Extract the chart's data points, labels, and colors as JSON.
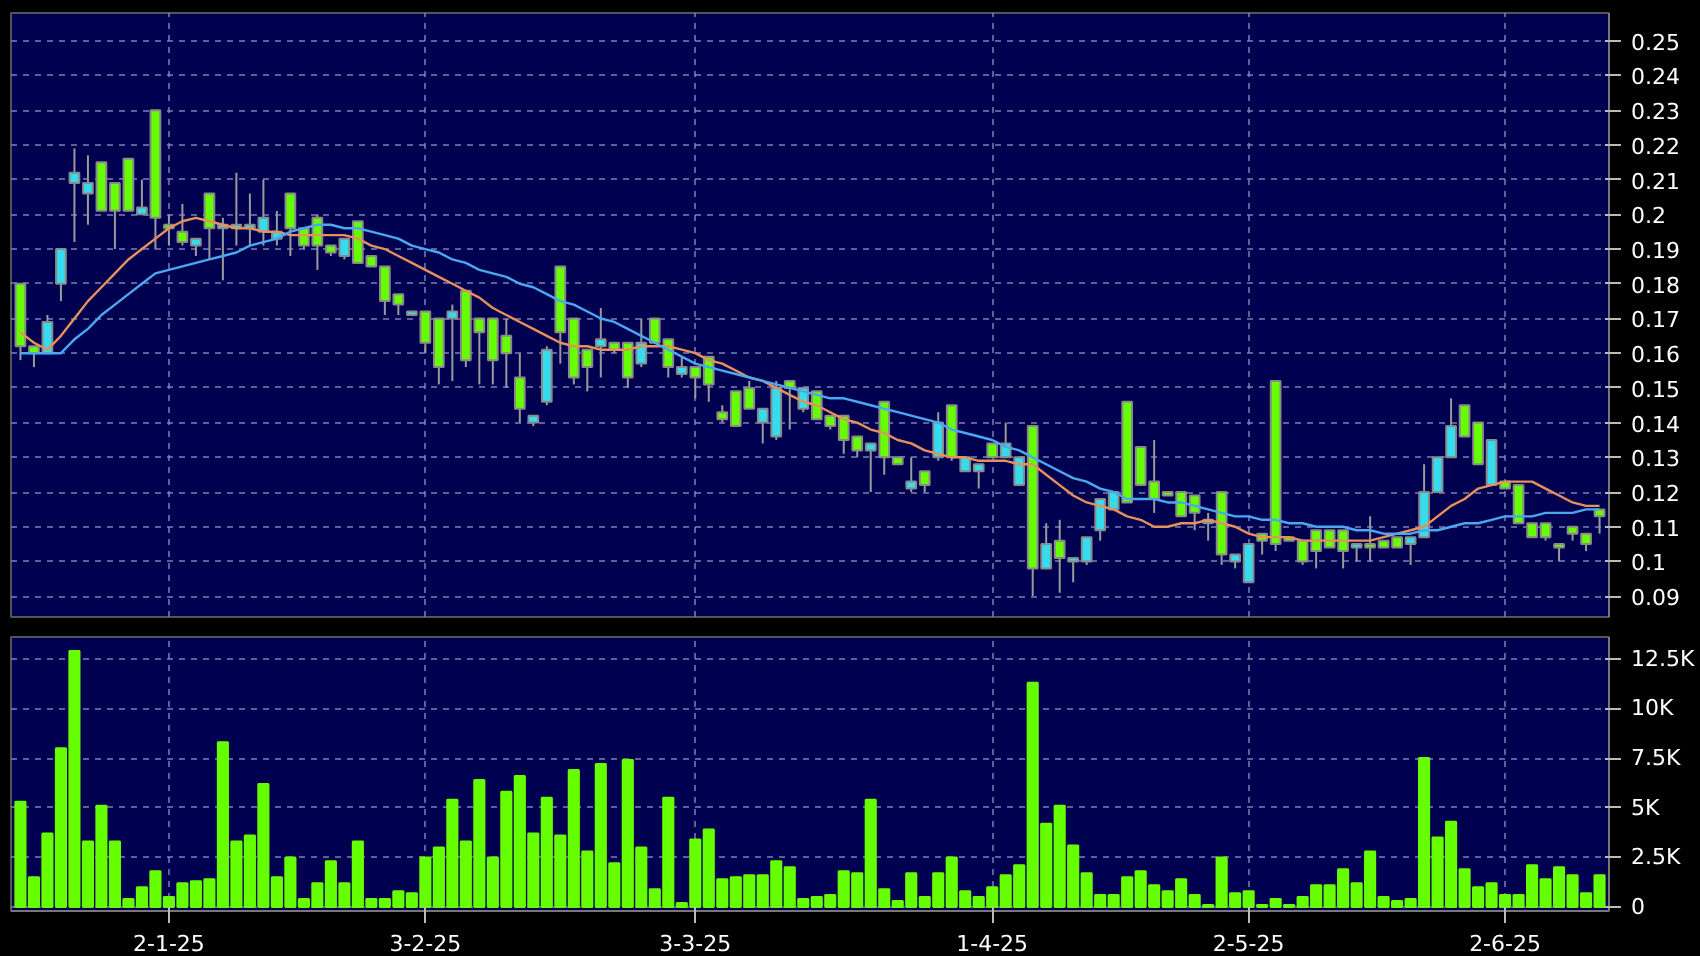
{
  "chart_data": [
    {
      "type": "candlestick",
      "categories": [
        null,
        null,
        null,
        null,
        null,
        null,
        null,
        null,
        null,
        null,
        null,
        null,
        null,
        null,
        null,
        null,
        null,
        null,
        null,
        null,
        null,
        null,
        null,
        null,
        null,
        null,
        null,
        null,
        null,
        null,
        null,
        null,
        null,
        null,
        null,
        null,
        null,
        null,
        null,
        null,
        null,
        null,
        null,
        null,
        null,
        null,
        null,
        null,
        null,
        null,
        null,
        null,
        null,
        null,
        null,
        null,
        null,
        null,
        null,
        null,
        null,
        null,
        null,
        null,
        null,
        null,
        null,
        null,
        null,
        null,
        null,
        null,
        null,
        null,
        null,
        null,
        null,
        null,
        null,
        null,
        null,
        null,
        null,
        null,
        null,
        null,
        null,
        null,
        null,
        null,
        null,
        null,
        null,
        null,
        null,
        null,
        null,
        null,
        null,
        null,
        null,
        null,
        null,
        null,
        null,
        null,
        null,
        null,
        null,
        null,
        null,
        null,
        null,
        null,
        null,
        null,
        null,
        null
      ],
      "ohlc": [
        [
          0.18,
          0.18,
          0.158,
          0.162
        ],
        [
          0.162,
          0.162,
          0.156,
          0.16
        ],
        [
          0.16,
          0.171,
          0.16,
          0.169
        ],
        [
          0.18,
          0.19,
          0.175,
          0.19
        ],
        [
          0.209,
          0.219,
          0.192,
          0.212
        ],
        [
          0.206,
          0.217,
          0.197,
          0.209
        ],
        [
          0.215,
          0.215,
          0.201,
          0.201
        ],
        [
          0.209,
          0.209,
          0.19,
          0.201
        ],
        [
          0.216,
          0.216,
          0.201,
          0.201
        ],
        [
          0.2,
          0.21,
          0.2,
          0.202
        ],
        [
          0.23,
          0.23,
          0.19,
          0.199
        ],
        [
          0.197,
          0.2,
          0.191,
          0.196
        ],
        [
          0.195,
          0.203,
          0.191,
          0.192
        ],
        [
          0.191,
          0.193,
          0.188,
          0.193
        ],
        [
          0.206,
          0.206,
          0.187,
          0.196
        ],
        [
          0.196,
          0.199,
          0.181,
          0.197
        ],
        [
          0.196,
          0.212,
          0.191,
          0.197
        ],
        [
          0.196,
          0.206,
          0.191,
          0.197
        ],
        [
          0.195,
          0.21,
          0.191,
          0.199
        ],
        [
          0.193,
          0.201,
          0.191,
          0.195
        ],
        [
          0.206,
          0.206,
          0.188,
          0.196
        ],
        [
          0.196,
          0.196,
          0.19,
          0.191
        ],
        [
          0.199,
          0.2,
          0.184,
          0.191
        ],
        [
          0.191,
          0.191,
          0.188,
          0.189
        ],
        [
          0.188,
          0.193,
          0.187,
          0.193
        ],
        [
          0.198,
          0.198,
          0.186,
          0.186
        ],
        [
          0.188,
          0.188,
          0.185,
          0.185
        ],
        [
          0.185,
          0.185,
          0.171,
          0.175
        ],
        [
          0.177,
          0.177,
          0.171,
          0.174
        ],
        [
          0.171,
          0.172,
          0.171,
          0.172
        ],
        [
          0.172,
          0.172,
          0.16,
          0.163
        ],
        [
          0.17,
          0.17,
          0.151,
          0.156
        ],
        [
          0.17,
          0.174,
          0.152,
          0.172
        ],
        [
          0.178,
          0.178,
          0.156,
          0.158
        ],
        [
          0.17,
          0.17,
          0.151,
          0.166
        ],
        [
          0.17,
          0.17,
          0.151,
          0.158
        ],
        [
          0.165,
          0.17,
          0.15,
          0.16
        ],
        [
          0.153,
          0.16,
          0.14,
          0.144
        ],
        [
          0.14,
          0.142,
          0.139,
          0.142
        ],
        [
          0.146,
          0.162,
          0.145,
          0.161
        ],
        [
          0.185,
          0.185,
          0.157,
          0.166
        ],
        [
          0.17,
          0.17,
          0.151,
          0.153
        ],
        [
          0.161,
          0.161,
          0.149,
          0.156
        ],
        [
          0.162,
          0.173,
          0.153,
          0.164
        ],
        [
          0.163,
          0.163,
          0.16,
          0.161
        ],
        [
          0.163,
          0.163,
          0.15,
          0.153
        ],
        [
          0.157,
          0.17,
          0.156,
          0.163
        ],
        [
          0.17,
          0.17,
          0.163,
          0.163
        ],
        [
          0.164,
          0.164,
          0.153,
          0.156
        ],
        [
          0.154,
          0.159,
          0.153,
          0.156
        ],
        [
          0.156,
          0.156,
          0.147,
          0.153
        ],
        [
          0.159,
          0.159,
          0.146,
          0.151
        ],
        [
          0.143,
          0.145,
          0.14,
          0.141
        ],
        [
          0.149,
          0.149,
          0.139,
          0.139
        ],
        [
          0.15,
          0.152,
          0.144,
          0.144
        ],
        [
          0.14,
          0.144,
          0.134,
          0.144
        ],
        [
          0.136,
          0.152,
          0.135,
          0.15
        ],
        [
          0.152,
          0.152,
          0.138,
          0.15
        ],
        [
          0.144,
          0.15,
          0.143,
          0.15
        ],
        [
          0.149,
          0.149,
          0.141,
          0.141
        ],
        [
          0.142,
          0.142,
          0.138,
          0.139
        ],
        [
          0.142,
          0.142,
          0.131,
          0.135
        ],
        [
          0.136,
          0.136,
          0.13,
          0.132
        ],
        [
          0.132,
          0.134,
          0.12,
          0.134
        ],
        [
          0.146,
          0.146,
          0.125,
          0.13
        ],
        [
          0.13,
          0.13,
          0.128,
          0.128
        ],
        [
          0.121,
          0.13,
          0.12,
          0.123
        ],
        [
          0.126,
          0.126,
          0.12,
          0.122
        ],
        [
          0.13,
          0.143,
          0.129,
          0.14
        ],
        [
          0.145,
          0.145,
          0.129,
          0.13
        ],
        [
          0.126,
          0.13,
          0.126,
          0.13
        ],
        [
          0.126,
          0.128,
          0.121,
          0.128
        ],
        [
          0.134,
          0.134,
          0.13,
          0.13
        ],
        [
          0.13,
          0.14,
          0.13,
          0.134
        ],
        [
          0.122,
          0.13,
          0.122,
          0.13
        ],
        [
          0.139,
          0.139,
          0.09,
          0.098
        ],
        [
          0.098,
          0.111,
          0.098,
          0.105
        ],
        [
          0.106,
          0.112,
          0.091,
          0.101
        ],
        [
          0.1,
          0.101,
          0.094,
          0.101
        ],
        [
          0.1,
          0.107,
          0.099,
          0.107
        ],
        [
          0.109,
          0.118,
          0.106,
          0.118
        ],
        [
          0.115,
          0.12,
          0.115,
          0.12
        ],
        [
          0.146,
          0.146,
          0.117,
          0.117
        ],
        [
          0.133,
          0.133,
          0.122,
          0.122
        ],
        [
          0.123,
          0.135,
          0.114,
          0.118
        ],
        [
          0.12,
          0.12,
          0.119,
          0.119
        ],
        [
          0.12,
          0.12,
          0.113,
          0.113
        ],
        [
          0.119,
          0.119,
          0.109,
          0.114
        ],
        [
          0.111,
          0.114,
          0.106,
          0.112
        ],
        [
          0.12,
          0.12,
          0.099,
          0.102
        ],
        [
          0.1,
          0.102,
          0.098,
          0.102
        ],
        [
          0.094,
          0.105,
          0.094,
          0.105
        ],
        [
          0.108,
          0.108,
          0.102,
          0.106
        ],
        [
          0.152,
          0.152,
          0.103,
          0.105
        ],
        [
          0.107,
          0.107,
          0.106,
          0.106
        ],
        [
          0.106,
          0.106,
          0.099,
          0.1
        ],
        [
          0.109,
          0.109,
          0.098,
          0.103
        ],
        [
          0.109,
          0.109,
          0.104,
          0.104
        ],
        [
          0.109,
          0.109,
          0.098,
          0.103
        ],
        [
          0.104,
          0.105,
          0.1,
          0.105
        ],
        [
          0.105,
          0.113,
          0.1,
          0.104
        ],
        [
          0.106,
          0.106,
          0.104,
          0.104
        ],
        [
          0.107,
          0.107,
          0.104,
          0.104
        ],
        [
          0.105,
          0.107,
          0.099,
          0.107
        ],
        [
          0.107,
          0.128,
          0.107,
          0.12
        ],
        [
          0.12,
          0.13,
          0.12,
          0.13
        ],
        [
          0.13,
          0.147,
          0.13,
          0.139
        ],
        [
          0.145,
          0.145,
          0.136,
          0.136
        ],
        [
          0.14,
          0.14,
          0.128,
          0.128
        ],
        [
          0.122,
          0.135,
          0.122,
          0.135
        ],
        [
          0.123,
          0.123,
          0.121,
          0.121
        ],
        [
          0.122,
          0.122,
          0.111,
          0.111
        ],
        [
          0.111,
          0.111,
          0.107,
          0.107
        ],
        [
          0.111,
          0.111,
          0.106,
          0.107
        ],
        [
          0.105,
          0.105,
          0.1,
          0.104
        ],
        [
          0.11,
          0.11,
          0.106,
          0.108
        ],
        [
          0.108,
          0.108,
          0.103,
          0.105
        ],
        [
          0.115,
          0.115,
          0.108,
          0.113
        ]
      ],
      "colors": [
        "#66ff00",
        "#66ff00",
        "#33ddee",
        "#33ddee",
        "#33ddee",
        "#33ddee",
        "#66ff00",
        "#66ff00",
        "#66ff00",
        "#33ddee",
        "#66ff00",
        "#66ff00",
        "#66ff00",
        "#33ddee",
        "#66ff00",
        "#33ddee",
        "#33ddee",
        "#33ddee",
        "#33ddee",
        "#33ddee",
        "#66ff00",
        "#66ff00",
        "#66ff00",
        "#66ff00",
        "#33ddee",
        "#66ff00",
        "#66ff00",
        "#66ff00",
        "#66ff00",
        "#33ddee",
        "#66ff00",
        "#66ff00",
        "#33ddee",
        "#66ff00",
        "#66ff00",
        "#66ff00",
        "#66ff00",
        "#66ff00",
        "#33ddee",
        "#33ddee",
        "#66ff00",
        "#66ff00",
        "#66ff00",
        "#33ddee",
        "#66ff00",
        "#66ff00",
        "#33ddee",
        "#66ff00",
        "#66ff00",
        "#33ddee",
        "#66ff00",
        "#66ff00",
        "#66ff00",
        "#66ff00",
        "#66ff00",
        "#33ddee",
        "#33ddee",
        "#66ff00",
        "#33ddee",
        "#66ff00",
        "#66ff00",
        "#66ff00",
        "#66ff00",
        "#33ddee",
        "#66ff00",
        "#66ff00",
        "#33ddee",
        "#66ff00",
        "#33ddee",
        "#66ff00",
        "#33ddee",
        "#33ddee",
        "#66ff00",
        "#33ddee",
        "#33ddee",
        "#66ff00",
        "#33ddee",
        "#66ff00",
        "#33ddee",
        "#33ddee",
        "#33ddee",
        "#33ddee",
        "#66ff00",
        "#66ff00",
        "#66ff00",
        "#66ff00",
        "#66ff00",
        "#66ff00",
        "#33ddee",
        "#66ff00",
        "#33ddee",
        "#33ddee",
        "#66ff00",
        "#66ff00",
        "#66ff00",
        "#66ff00",
        "#66ff00",
        "#66ff00",
        "#66ff00",
        "#33ddee",
        "#66ff00",
        "#66ff00",
        "#66ff00",
        "#33ddee",
        "#33ddee",
        "#33ddee",
        "#33ddee",
        "#66ff00",
        "#66ff00",
        "#33ddee",
        "#66ff00",
        "#66ff00",
        "#66ff00",
        "#66ff00",
        "#66ff00",
        "#66ff00",
        "#66ff00",
        "#66ff00"
      ],
      "series": [
        {
          "type": "line",
          "color": "#e8905a",
          "values": [
            0.166,
            0.163,
            0.161,
            0.165,
            0.17,
            0.175,
            0.179,
            0.183,
            0.187,
            0.19,
            0.193,
            0.196,
            0.198,
            0.199,
            0.198,
            0.197,
            0.196,
            0.196,
            0.195,
            0.195,
            0.194,
            0.194,
            0.194,
            0.194,
            0.194,
            0.193,
            0.191,
            0.19,
            0.188,
            0.186,
            0.184,
            0.182,
            0.18,
            0.178,
            0.176,
            0.173,
            0.171,
            0.169,
            0.167,
            0.165,
            0.163,
            0.162,
            0.162,
            0.161,
            0.161,
            0.161,
            0.162,
            0.162,
            0.162,
            0.161,
            0.16,
            0.158,
            0.157,
            0.155,
            0.153,
            0.152,
            0.15,
            0.148,
            0.146,
            0.145,
            0.143,
            0.141,
            0.14,
            0.138,
            0.137,
            0.135,
            0.134,
            0.132,
            0.131,
            0.13,
            0.13,
            0.129,
            0.129,
            0.129,
            0.128,
            0.128,
            0.125,
            0.122,
            0.119,
            0.117,
            0.116,
            0.115,
            0.113,
            0.112,
            0.11,
            0.11,
            0.111,
            0.111,
            0.112,
            0.111,
            0.11,
            0.108,
            0.107,
            0.107,
            0.107,
            0.106,
            0.106,
            0.106,
            0.106,
            0.106,
            0.106,
            0.107,
            0.108,
            0.109,
            0.11,
            0.113,
            0.116,
            0.118,
            0.121,
            0.122,
            0.123,
            0.123,
            0.123,
            0.121,
            0.119,
            0.117,
            0.116,
            0.116
          ]
        },
        {
          "type": "line",
          "color": "#4aa8f0",
          "values": [
            0.16,
            0.16,
            0.16,
            0.16,
            0.164,
            0.167,
            0.171,
            0.174,
            0.177,
            0.18,
            0.183,
            0.184,
            0.185,
            0.186,
            0.187,
            0.188,
            0.189,
            0.191,
            0.192,
            0.193,
            0.195,
            0.196,
            0.197,
            0.197,
            0.196,
            0.196,
            0.195,
            0.194,
            0.193,
            0.191,
            0.19,
            0.189,
            0.187,
            0.186,
            0.184,
            0.183,
            0.182,
            0.18,
            0.179,
            0.177,
            0.175,
            0.174,
            0.172,
            0.17,
            0.169,
            0.167,
            0.165,
            0.163,
            0.161,
            0.159,
            0.157,
            0.156,
            0.155,
            0.154,
            0.153,
            0.152,
            0.151,
            0.15,
            0.149,
            0.148,
            0.147,
            0.147,
            0.146,
            0.145,
            0.144,
            0.143,
            0.142,
            0.141,
            0.14,
            0.138,
            0.137,
            0.136,
            0.135,
            0.133,
            0.132,
            0.13,
            0.128,
            0.126,
            0.124,
            0.123,
            0.121,
            0.12,
            0.118,
            0.118,
            0.118,
            0.117,
            0.117,
            0.116,
            0.115,
            0.114,
            0.113,
            0.113,
            0.112,
            0.112,
            0.111,
            0.111,
            0.11,
            0.11,
            0.11,
            0.109,
            0.109,
            0.108,
            0.108,
            0.108,
            0.109,
            0.109,
            0.11,
            0.111,
            0.111,
            0.112,
            0.113,
            0.113,
            0.113,
            0.114,
            0.114,
            0.114,
            0.115,
            0.115
          ]
        }
      ],
      "ylim": [
        0.084,
        0.258
      ],
      "yticks": [
        0.09,
        0.1,
        0.11,
        0.12,
        0.13,
        0.14,
        0.15,
        0.16,
        0.17,
        0.18,
        0.19,
        0.2,
        0.21,
        0.22,
        0.23,
        0.24,
        0.25
      ],
      "grid": true,
      "tick_labels": "y"
    },
    {
      "type": "bar",
      "categories": [
        null,
        null,
        null,
        null,
        null,
        null,
        null,
        null,
        null,
        null,
        null,
        "2-1-25",
        null,
        null,
        null,
        null,
        null,
        null,
        null,
        null,
        null,
        null,
        null,
        null,
        null,
        null,
        null,
        null,
        null,
        null,
        "3-2-25",
        null,
        null,
        null,
        null,
        null,
        null,
        null,
        null,
        null,
        null,
        null,
        null,
        null,
        null,
        null,
        null,
        null,
        null,
        null,
        "3-3-25",
        null,
        null,
        null,
        null,
        null,
        null,
        null,
        null,
        null,
        null,
        null,
        null,
        null,
        null,
        null,
        null,
        null,
        null,
        null,
        null,
        null,
        "1-4-25",
        null,
        null,
        null,
        null,
        null,
        null,
        null,
        null,
        null,
        null,
        null,
        null,
        null,
        null,
        null,
        null,
        null,
        null,
        "2-5-25",
        null,
        null,
        null,
        null,
        null,
        null,
        null,
        null,
        null,
        null,
        null,
        null,
        null,
        null,
        null,
        null,
        null,
        null,
        "2-6-25",
        null,
        null,
        null,
        null,
        null,
        null,
        null
      ],
      "values": [
        5.3,
        1.5,
        3.7,
        8.0,
        12.9,
        3.3,
        5.1,
        3.3,
        0.4,
        1.0,
        1.8,
        0.5,
        1.2,
        1.3,
        1.4,
        8.3,
        3.3,
        3.6,
        6.2,
        1.5,
        2.5,
        0.4,
        1.2,
        2.3,
        1.2,
        3.3,
        0.4,
        0.4,
        0.8,
        0.7,
        2.5,
        3.0,
        5.4,
        3.3,
        6.4,
        2.5,
        5.8,
        6.6,
        3.7,
        5.5,
        3.6,
        6.9,
        2.8,
        7.2,
        2.2,
        7.4,
        3.0,
        0.9,
        5.5,
        0.2,
        3.4,
        3.9,
        1.4,
        1.5,
        1.6,
        1.6,
        2.3,
        2.0,
        0.4,
        0.5,
        0.6,
        1.8,
        1.7,
        5.4,
        0.9,
        0.3,
        1.7,
        0.5,
        1.7,
        2.5,
        0.8,
        0.5,
        1.0,
        1.6,
        2.1,
        11.3,
        4.2,
        5.1,
        3.1,
        1.7,
        0.6,
        0.6,
        1.5,
        1.8,
        1.1,
        0.8,
        1.4,
        0.6,
        0.1,
        2.5,
        0.7,
        0.8,
        0.1,
        0.4,
        0.1,
        0.5,
        1.1,
        1.1,
        1.9,
        1.2,
        2.8,
        0.5,
        0.3,
        0.4,
        7.5,
        3.5,
        4.3,
        1.9,
        1.0,
        1.2,
        0.6,
        0.6,
        2.1,
        1.4,
        2.0,
        1.6,
        0.7,
        1.6
      ],
      "color": "#66ff00",
      "ylim": [
        -0.2,
        13.6
      ],
      "yticks": [
        0,
        {
          "value": 2.5,
          "label": "2.5K"
        },
        {
          "value": 5,
          "label": "5K"
        },
        {
          "value": 7.5,
          "label": "7.5K"
        },
        {
          "value": 10,
          "label": "10K"
        },
        {
          "value": 12.5,
          "label": "12.5K"
        }
      ],
      "grid": true
    }
  ]
}
